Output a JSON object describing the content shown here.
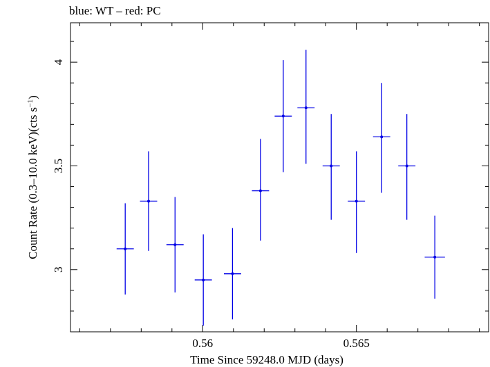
{
  "chart_data": {
    "type": "scatter",
    "title": "blue: WT – red: PC",
    "xlabel": "Time Since 59248.0 MJD (days)",
    "ylabel_main": "Count Rate (0.3–10.0 keV)(cts s",
    "ylabel_sup": "−1",
    "ylabel_close": ")",
    "xlim": [
      0.5557,
      0.5693
    ],
    "ylim": [
      2.7,
      4.19
    ],
    "x_ticks": [
      {
        "value": 0.56,
        "label": "0.56"
      },
      {
        "value": 0.565,
        "label": "0.565"
      }
    ],
    "x_minor_step": 0.001,
    "y_ticks": [
      {
        "value": 3.0,
        "label": "3"
      },
      {
        "value": 3.5,
        "label": "3.5"
      },
      {
        "value": 4.0,
        "label": "4"
      }
    ],
    "y_minor_step": 0.1,
    "grid": false,
    "series": [
      {
        "color": "#0000e6",
        "points": [
          {
            "x": 0.55748,
            "y": 3.1,
            "xerr": 0.00028,
            "ylo": 2.88,
            "yhi": 3.32
          },
          {
            "x": 0.55824,
            "y": 3.33,
            "xerr": 0.00028,
            "ylo": 3.09,
            "yhi": 3.57
          },
          {
            "x": 0.5591,
            "y": 3.12,
            "xerr": 0.00028,
            "ylo": 2.89,
            "yhi": 3.35
          },
          {
            "x": 0.56002,
            "y": 2.95,
            "xerr": 0.00028,
            "ylo": 2.73,
            "yhi": 3.17
          },
          {
            "x": 0.56097,
            "y": 2.98,
            "xerr": 0.00028,
            "ylo": 2.76,
            "yhi": 3.2
          },
          {
            "x": 0.56188,
            "y": 3.38,
            "xerr": 0.00028,
            "ylo": 3.14,
            "yhi": 3.63
          },
          {
            "x": 0.56262,
            "y": 3.74,
            "xerr": 0.00028,
            "ylo": 3.47,
            "yhi": 4.01
          },
          {
            "x": 0.56336,
            "y": 3.78,
            "xerr": 0.00028,
            "ylo": 3.51,
            "yhi": 4.06
          },
          {
            "x": 0.56418,
            "y": 3.5,
            "xerr": 0.00028,
            "ylo": 3.24,
            "yhi": 3.75
          },
          {
            "x": 0.565,
            "y": 3.33,
            "xerr": 0.00028,
            "ylo": 3.08,
            "yhi": 3.57
          },
          {
            "x": 0.56582,
            "y": 3.64,
            "xerr": 0.00028,
            "ylo": 3.37,
            "yhi": 3.9
          },
          {
            "x": 0.56664,
            "y": 3.5,
            "xerr": 0.00028,
            "ylo": 3.24,
            "yhi": 3.75
          },
          {
            "x": 0.56755,
            "y": 3.06,
            "xerr": 0.00033,
            "ylo": 2.86,
            "yhi": 3.26
          }
        ]
      }
    ]
  }
}
